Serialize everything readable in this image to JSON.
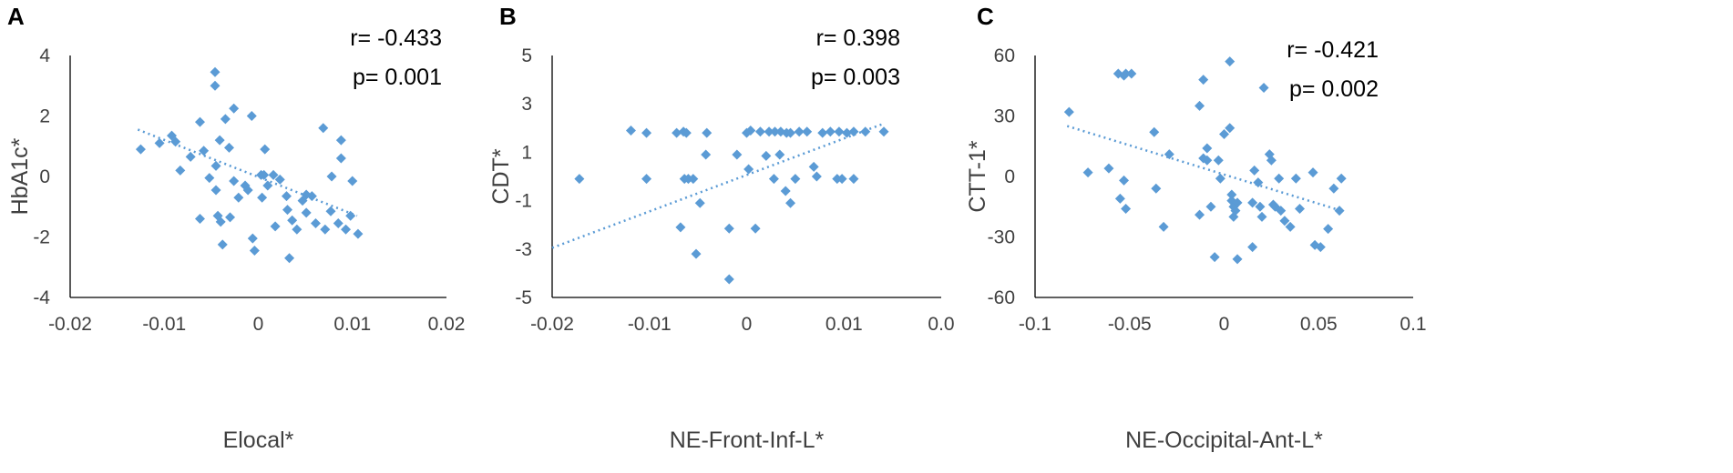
{
  "chart_data": [
    {
      "type": "scatter",
      "panel": "A",
      "xlabel": "Elocal*",
      "ylabel": "HbA1c*",
      "xlim": [
        -0.02,
        0.02
      ],
      "ylim": [
        -4,
        4
      ],
      "xticks": [
        "-0.02",
        "-0.01",
        "0",
        "0.01",
        "0.02"
      ],
      "yticks": [
        "-4",
        "-2",
        "0",
        "2",
        "4"
      ],
      "stats": {
        "r": "r= -0.433",
        "p": "p= 0.001"
      },
      "trendline": {
        "x": [
          -0.0128,
          0.0105
        ],
        "y": [
          1.55,
          -1.3
        ]
      },
      "points": [
        [
          -0.0125,
          0.9
        ],
        [
          -0.0105,
          1.1
        ],
        [
          -0.0092,
          1.35
        ],
        [
          -0.0088,
          1.15
        ],
        [
          -0.0083,
          0.2
        ],
        [
          -0.0072,
          0.65
        ],
        [
          -0.0062,
          1.8
        ],
        [
          -0.0062,
          -1.4
        ],
        [
          -0.0058,
          0.85
        ],
        [
          -0.0052,
          -0.05
        ],
        [
          -0.0046,
          3.45
        ],
        [
          -0.0046,
          3.0
        ],
        [
          -0.0045,
          0.35
        ],
        [
          -0.0045,
          -0.45
        ],
        [
          -0.0043,
          -1.3
        ],
        [
          -0.0041,
          1.2
        ],
        [
          -0.004,
          -1.5
        ],
        [
          -0.0038,
          -2.25
        ],
        [
          -0.0035,
          1.9
        ],
        [
          -0.0031,
          0.95
        ],
        [
          -0.003,
          -1.35
        ],
        [
          -0.0026,
          2.25
        ],
        [
          -0.0026,
          -0.15
        ],
        [
          -0.0021,
          -0.7
        ],
        [
          -0.0014,
          -0.3
        ],
        [
          -0.0011,
          -0.45
        ],
        [
          -0.0007,
          2.0
        ],
        [
          -0.0006,
          -2.05
        ],
        [
          -0.0004,
          -2.45
        ],
        [
          0.0003,
          0.05
        ],
        [
          0.0004,
          -0.7
        ],
        [
          0.0006,
          0.05
        ],
        [
          0.0007,
          0.9
        ],
        [
          0.001,
          -0.3
        ],
        [
          0.0016,
          0.05
        ],
        [
          0.0018,
          -1.65
        ],
        [
          0.0023,
          -0.1
        ],
        [
          0.003,
          -0.65
        ],
        [
          0.0031,
          -1.1
        ],
        [
          0.0033,
          -2.7
        ],
        [
          0.0036,
          -1.45
        ],
        [
          0.0041,
          -1.75
        ],
        [
          0.0047,
          -0.8
        ],
        [
          0.0051,
          -0.6
        ],
        [
          0.0051,
          -1.2
        ],
        [
          0.0057,
          -0.65
        ],
        [
          0.0061,
          -1.55
        ],
        [
          0.0069,
          1.6
        ],
        [
          0.0071,
          -1.75
        ],
        [
          0.0077,
          -1.15
        ],
        [
          0.0078,
          0.0
        ],
        [
          0.0085,
          -1.55
        ],
        [
          0.0088,
          1.2
        ],
        [
          0.0088,
          0.6
        ],
        [
          0.0093,
          -1.75
        ],
        [
          0.0098,
          -1.3
        ],
        [
          0.01,
          -0.15
        ],
        [
          0.0106,
          -1.9
        ]
      ]
    },
    {
      "type": "scatter",
      "panel": "B",
      "xlabel": "NE-Front-Inf-L*",
      "ylabel": "CDT*",
      "xlim": [
        -0.02,
        0.02
      ],
      "ylim": [
        -5,
        5
      ],
      "xticks": [
        "-0.02",
        "-0.01",
        "0",
        "0.01",
        "0.0"
      ],
      "yticks": [
        "-5",
        "-3",
        "-1",
        "1",
        "3",
        "5"
      ],
      "stats": {
        "r": "r= 0.398",
        "p": "p= 0.003"
      },
      "trendline": {
        "x": [
          -0.02,
          0.0142
        ],
        "y": [
          -2.95,
          2.2
        ]
      },
      "points": [
        [
          -0.0172,
          -0.1
        ],
        [
          -0.0119,
          1.9
        ],
        [
          -0.0103,
          1.8
        ],
        [
          -0.0103,
          -0.1
        ],
        [
          -0.0072,
          1.8
        ],
        [
          -0.0065,
          1.85
        ],
        [
          -0.0062,
          1.8
        ],
        [
          -0.0064,
          -0.1
        ],
        [
          -0.006,
          -0.1
        ],
        [
          -0.0068,
          -2.1
        ],
        [
          -0.0055,
          -0.1
        ],
        [
          -0.0052,
          -3.2
        ],
        [
          -0.0048,
          -1.1
        ],
        [
          -0.0042,
          0.9
        ],
        [
          -0.0041,
          1.8
        ],
        [
          -0.0018,
          -2.15
        ],
        [
          -0.0018,
          -4.25
        ],
        [
          -0.001,
          0.9
        ],
        [
          0.0,
          1.8
        ],
        [
          0.0002,
          0.3
        ],
        [
          0.0004,
          1.9
        ],
        [
          0.0009,
          -2.15
        ],
        [
          0.0014,
          1.85
        ],
        [
          0.002,
          0.85
        ],
        [
          0.0023,
          1.85
        ],
        [
          0.0029,
          1.85
        ],
        [
          0.0028,
          -0.1
        ],
        [
          0.0035,
          1.85
        ],
        [
          0.0034,
          0.9
        ],
        [
          0.0041,
          1.8
        ],
        [
          0.004,
          -0.6
        ],
        [
          0.0045,
          1.8
        ],
        [
          0.0045,
          -1.1
        ],
        [
          0.005,
          -0.1
        ],
        [
          0.0054,
          1.85
        ],
        [
          0.0062,
          1.85
        ],
        [
          0.0069,
          0.4
        ],
        [
          0.0072,
          0.0
        ],
        [
          0.0078,
          1.8
        ],
        [
          0.0086,
          1.85
        ],
        [
          0.0093,
          -0.1
        ],
        [
          0.0095,
          1.85
        ],
        [
          0.0098,
          -0.1
        ],
        [
          0.0103,
          1.8
        ],
        [
          0.011,
          1.85
        ],
        [
          0.011,
          -0.1
        ],
        [
          0.0122,
          1.85
        ],
        [
          0.0141,
          1.85
        ]
      ]
    },
    {
      "type": "scatter",
      "panel": "C",
      "xlabel": "NE-Occipital-Ant-L*",
      "ylabel": "CTT-1*",
      "xlim": [
        -0.1,
        0.1
      ],
      "ylim": [
        -60,
        60
      ],
      "xticks": [
        "-0.1",
        "-0.05",
        "0",
        "0.05",
        "0.1"
      ],
      "yticks": [
        "-60",
        "-30",
        "0",
        "30",
        "60"
      ],
      "stats": {
        "r": "r= -0.421",
        "p": "p= 0.002"
      },
      "trendline": {
        "x": [
          -0.083,
          0.062
        ],
        "y": [
          25,
          -17
        ]
      },
      "points": [
        [
          -0.082,
          32
        ],
        [
          -0.072,
          2
        ],
        [
          -0.061,
          4
        ],
        [
          -0.056,
          51
        ],
        [
          -0.053,
          50
        ],
        [
          -0.052,
          51
        ],
        [
          -0.049,
          51
        ],
        [
          -0.055,
          -11
        ],
        [
          -0.053,
          -2
        ],
        [
          -0.052,
          -16
        ],
        [
          -0.037,
          22
        ],
        [
          -0.036,
          -6
        ],
        [
          -0.032,
          -25
        ],
        [
          -0.029,
          11
        ],
        [
          -0.013,
          35
        ],
        [
          -0.013,
          -19
        ],
        [
          -0.011,
          48
        ],
        [
          -0.011,
          9
        ],
        [
          -0.009,
          8
        ],
        [
          -0.009,
          14
        ],
        [
          -0.007,
          -15
        ],
        [
          -0.005,
          -40
        ],
        [
          -0.003,
          8
        ],
        [
          -0.002,
          -1
        ],
        [
          0.0,
          21
        ],
        [
          0.003,
          24
        ],
        [
          0.003,
          57
        ],
        [
          0.004,
          -9
        ],
        [
          0.004,
          -12
        ],
        [
          0.005,
          -15
        ],
        [
          0.005,
          -20
        ],
        [
          0.006,
          -17
        ],
        [
          0.007,
          -13
        ],
        [
          0.007,
          -41
        ],
        [
          0.015,
          -35
        ],
        [
          0.015,
          -13
        ],
        [
          0.016,
          3
        ],
        [
          0.018,
          -3
        ],
        [
          0.019,
          -15
        ],
        [
          0.02,
          -20
        ],
        [
          0.021,
          44
        ],
        [
          0.024,
          11
        ],
        [
          0.025,
          8
        ],
        [
          0.026,
          -14
        ],
        [
          0.027,
          -15
        ],
        [
          0.029,
          -1
        ],
        [
          0.03,
          -17
        ],
        [
          0.032,
          -22
        ],
        [
          0.035,
          -25
        ],
        [
          0.038,
          -1
        ],
        [
          0.04,
          -16
        ],
        [
          0.047,
          2
        ],
        [
          0.048,
          -34
        ],
        [
          0.051,
          -35
        ],
        [
          0.055,
          -26
        ],
        [
          0.058,
          -6
        ],
        [
          0.061,
          -17
        ],
        [
          0.062,
          -1
        ]
      ]
    }
  ]
}
